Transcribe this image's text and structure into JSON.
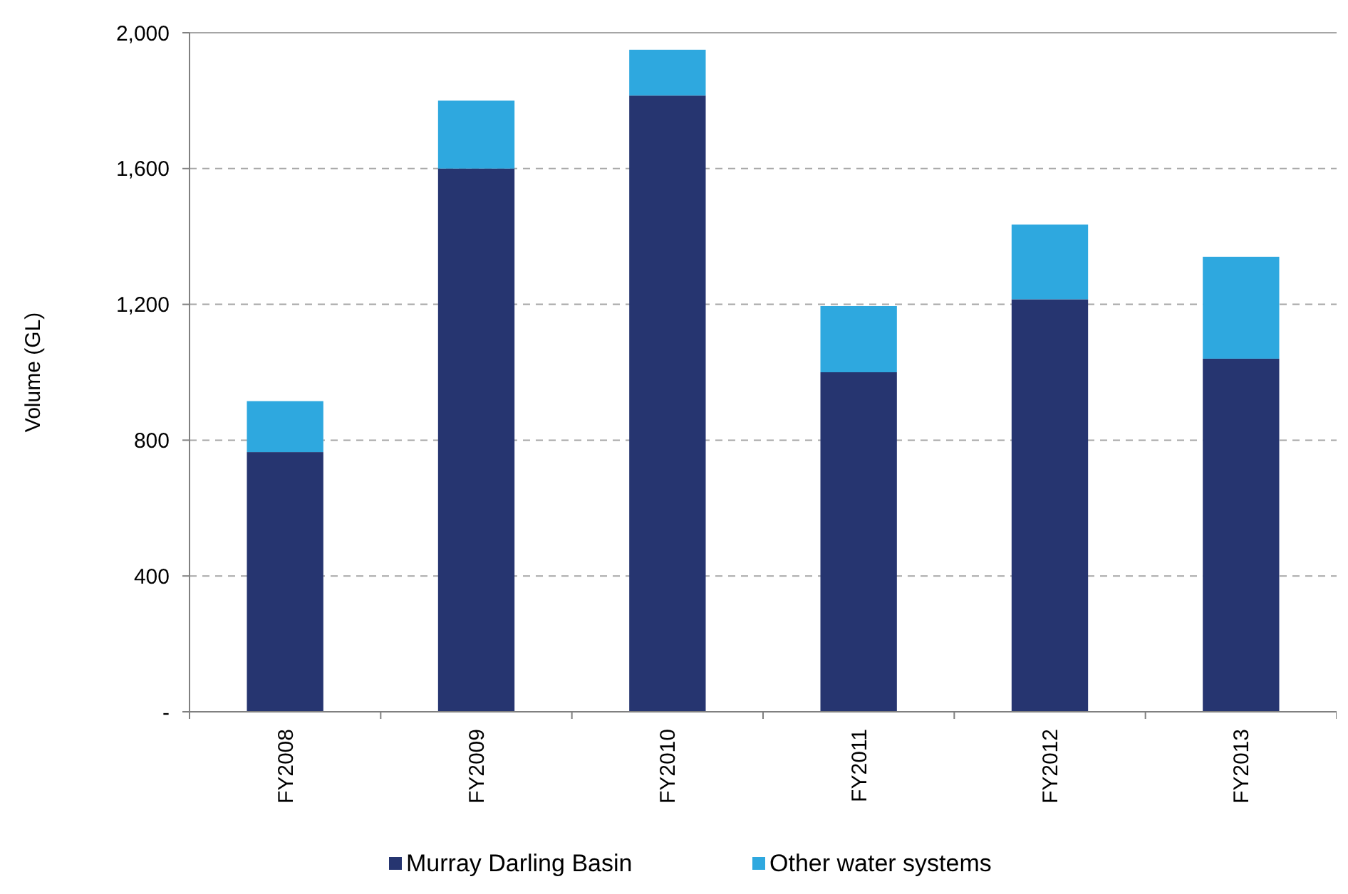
{
  "chart_data": {
    "type": "bar",
    "stacked": true,
    "ylabel": "Volume (GL)",
    "categories": [
      "FY2008",
      "FY2009",
      "FY2010",
      "FY2011",
      "FY2012",
      "FY2013"
    ],
    "series": [
      {
        "name": "Murray Darling Basin",
        "color": "#263570",
        "values": [
          765,
          1600,
          1815,
          1000,
          1215,
          1040
        ]
      },
      {
        "name": "Other water systems",
        "color": "#2ea8df",
        "values": [
          150,
          200,
          135,
          195,
          220,
          300
        ]
      }
    ],
    "ylim": [
      0,
      2000
    ],
    "yticks": [
      {
        "value": 0,
        "label": "-"
      },
      {
        "value": 400,
        "label": "400"
      },
      {
        "value": 800,
        "label": "800"
      },
      {
        "value": 1200,
        "label": "1,200"
      },
      {
        "value": 1600,
        "label": "1,600"
      },
      {
        "value": 2000,
        "label": "2,000"
      }
    ],
    "grid": "y",
    "legend": "bottom"
  }
}
